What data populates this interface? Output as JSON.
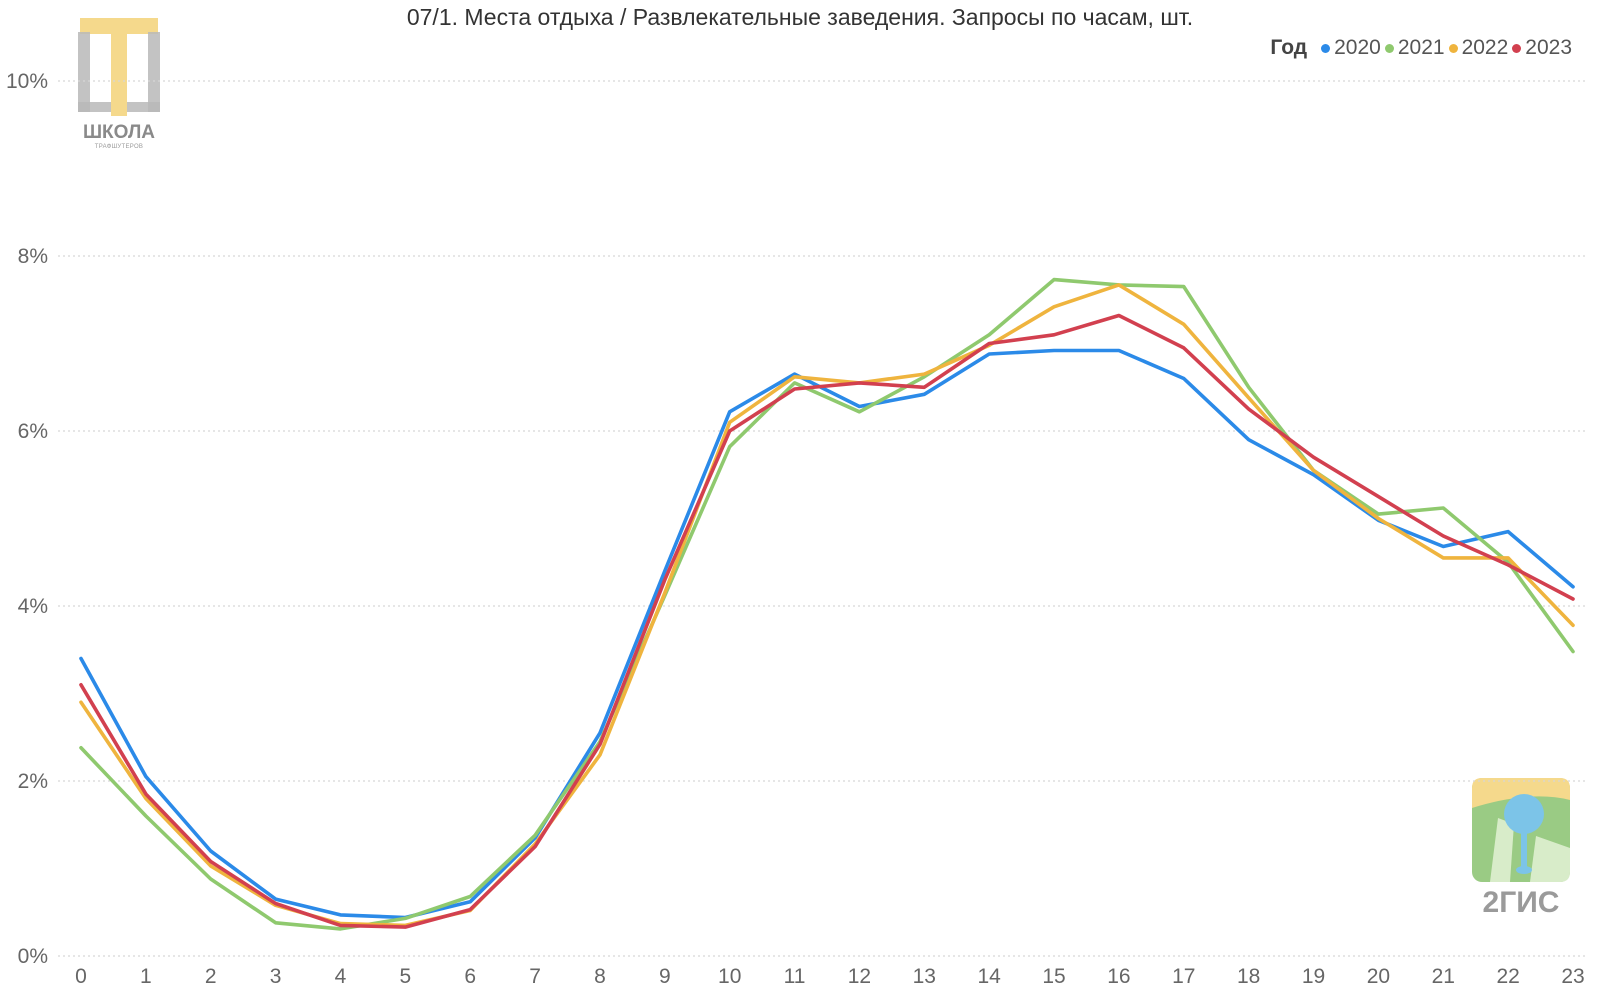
{
  "chart_data": {
    "type": "line",
    "title": "07/1. Места отдыха / Развлекательные заведения. Запросы по часам, шт.",
    "xlabel": "",
    "ylabel": "",
    "x": [
      0,
      1,
      2,
      3,
      4,
      5,
      6,
      7,
      8,
      9,
      10,
      11,
      12,
      13,
      14,
      15,
      16,
      17,
      18,
      19,
      20,
      21,
      22,
      23
    ],
    "x_tick_labels": [
      "0",
      "1",
      "2",
      "3",
      "4",
      "5",
      "6",
      "7",
      "8",
      "9",
      "10",
      "11",
      "12",
      "13",
      "14",
      "15",
      "16",
      "17",
      "18",
      "19",
      "20",
      "21",
      "22",
      "23"
    ],
    "ylim": [
      0,
      10
    ],
    "y_ticks": [
      0,
      2,
      4,
      6,
      8,
      10
    ],
    "y_tick_labels": [
      "0%",
      "2%",
      "4%",
      "6%",
      "8%",
      "10%"
    ],
    "grid": true,
    "legend": {
      "title": "Год",
      "placement": "top-right"
    },
    "series": [
      {
        "name": "2020",
        "color": "#2b8ae8",
        "values": [
          3.4,
          2.05,
          1.2,
          0.65,
          0.47,
          0.44,
          0.62,
          1.35,
          2.55,
          4.4,
          6.22,
          6.65,
          6.28,
          6.42,
          6.88,
          6.92,
          6.92,
          6.6,
          5.9,
          5.5,
          4.98,
          4.68,
          4.85,
          4.22
        ]
      },
      {
        "name": "2021",
        "color": "#8fc96e",
        "values": [
          2.38,
          1.6,
          0.88,
          0.38,
          0.31,
          0.43,
          0.68,
          1.38,
          2.45,
          4.12,
          5.82,
          6.55,
          6.22,
          6.62,
          7.1,
          7.73,
          7.67,
          7.65,
          6.5,
          5.55,
          5.05,
          5.12,
          4.5,
          3.48
        ]
      },
      {
        "name": "2022",
        "color": "#efb43e",
        "values": [
          2.9,
          1.8,
          1.03,
          0.58,
          0.37,
          0.35,
          0.52,
          1.28,
          2.3,
          4.15,
          6.1,
          6.62,
          6.55,
          6.65,
          6.98,
          7.42,
          7.67,
          7.22,
          6.38,
          5.55,
          5.0,
          4.55,
          4.55,
          3.78
        ]
      },
      {
        "name": "2023",
        "color": "#d2404f",
        "values": [
          3.1,
          1.85,
          1.08,
          0.6,
          0.35,
          0.33,
          0.53,
          1.25,
          2.42,
          4.3,
          6.0,
          6.48,
          6.55,
          6.5,
          7.0,
          7.1,
          7.32,
          6.95,
          6.25,
          5.7,
          5.25,
          4.8,
          4.47,
          4.08
        ]
      }
    ]
  },
  "logos": {
    "school": {
      "icon": "school-logo-icon",
      "text": "ШКОЛА",
      "subtext": "ТРАФШУТЕРОВ",
      "accent": "#f5d98c",
      "gray": "#b9b9b9"
    },
    "gis": {
      "icon": "2gis-logo-icon",
      "text": "2ГИС",
      "accent": "#f5d98c",
      "green": "#9acb84",
      "blue": "#7cc4e8"
    }
  }
}
